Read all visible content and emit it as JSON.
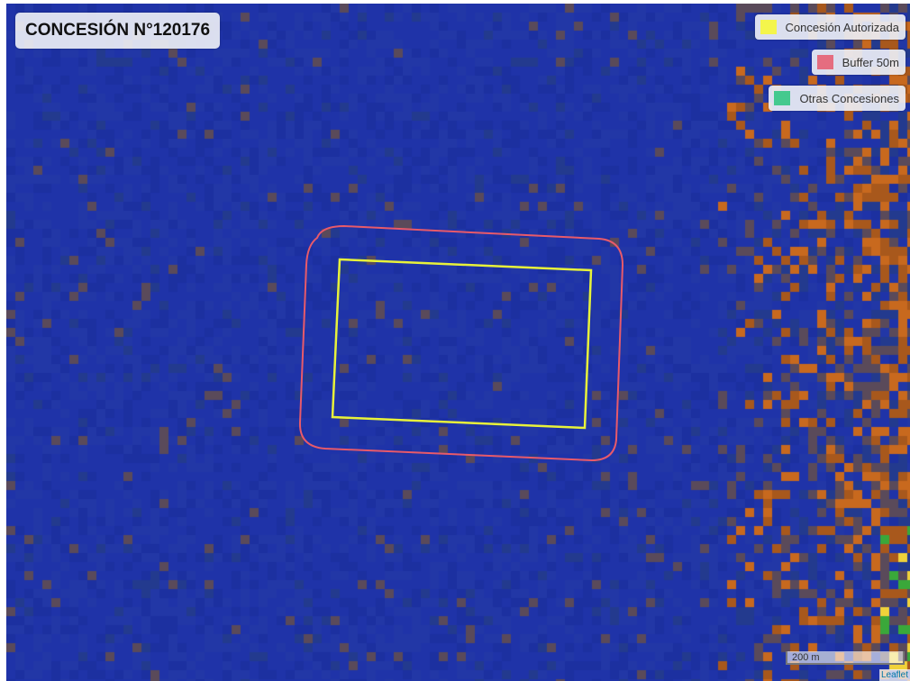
{
  "map": {
    "title": "CONCESIÓN N°120176",
    "legend": [
      {
        "label": "Concesión Autorizada",
        "color": "#f4f54c",
        "name": "legend-concesion-autorizada"
      },
      {
        "label": "Buffer 50m",
        "color": "#e56d80",
        "name": "legend-buffer-50m"
      },
      {
        "label": "Otras Concesiones",
        "color": "#44c98e",
        "name": "legend-otras-concesiones"
      }
    ],
    "scale_label": "200 m",
    "attribution": "Leaflet",
    "colors": {
      "concession_outline": "#e8f23a",
      "buffer_outline": "#e85a6a",
      "water": "#1f33a8",
      "land_orange": "#c8691e",
      "land_green": "#3aa83a",
      "land_yellow": "#f0d23a"
    }
  }
}
